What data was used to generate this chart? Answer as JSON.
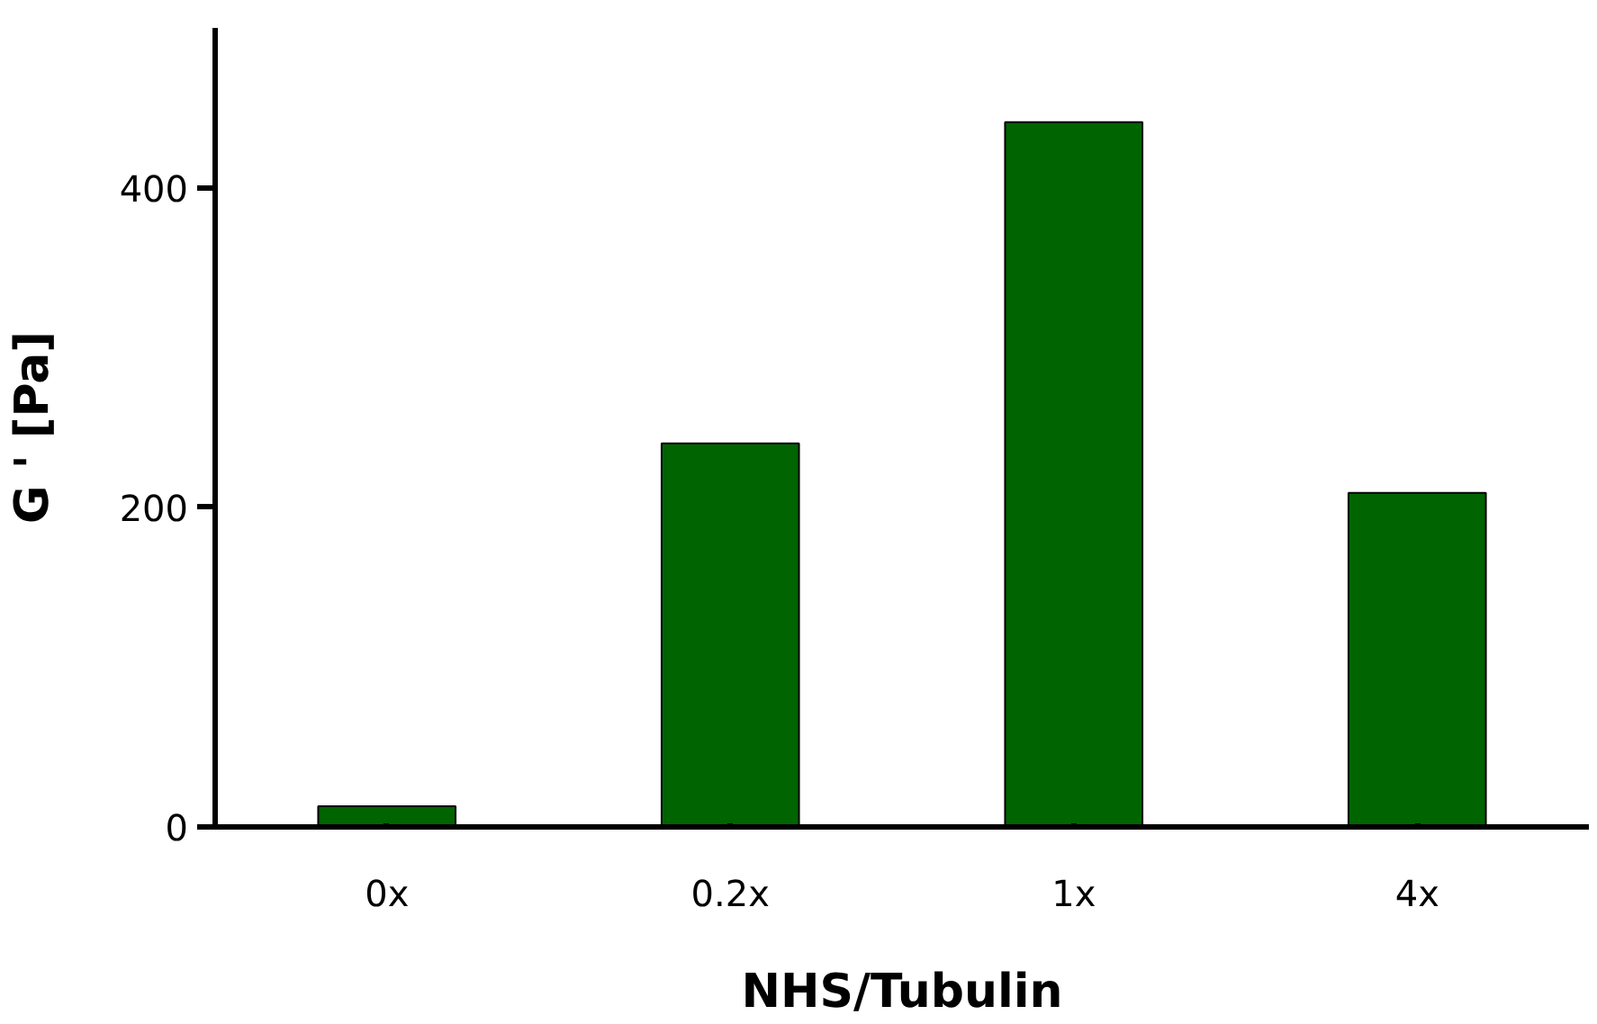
{
  "chart_data": {
    "type": "bar",
    "xlabel": "NHS/Tubulin",
    "ylabel": "G ' [Pa]",
    "categories": [
      "0x",
      "0.2x",
      "1x",
      "4x"
    ],
    "values": [
      13,
      240,
      441,
      209
    ],
    "color": "#006400",
    "ylim": [
      0,
      500
    ],
    "yticks": [
      0,
      200,
      400
    ],
    "grid": false
  }
}
